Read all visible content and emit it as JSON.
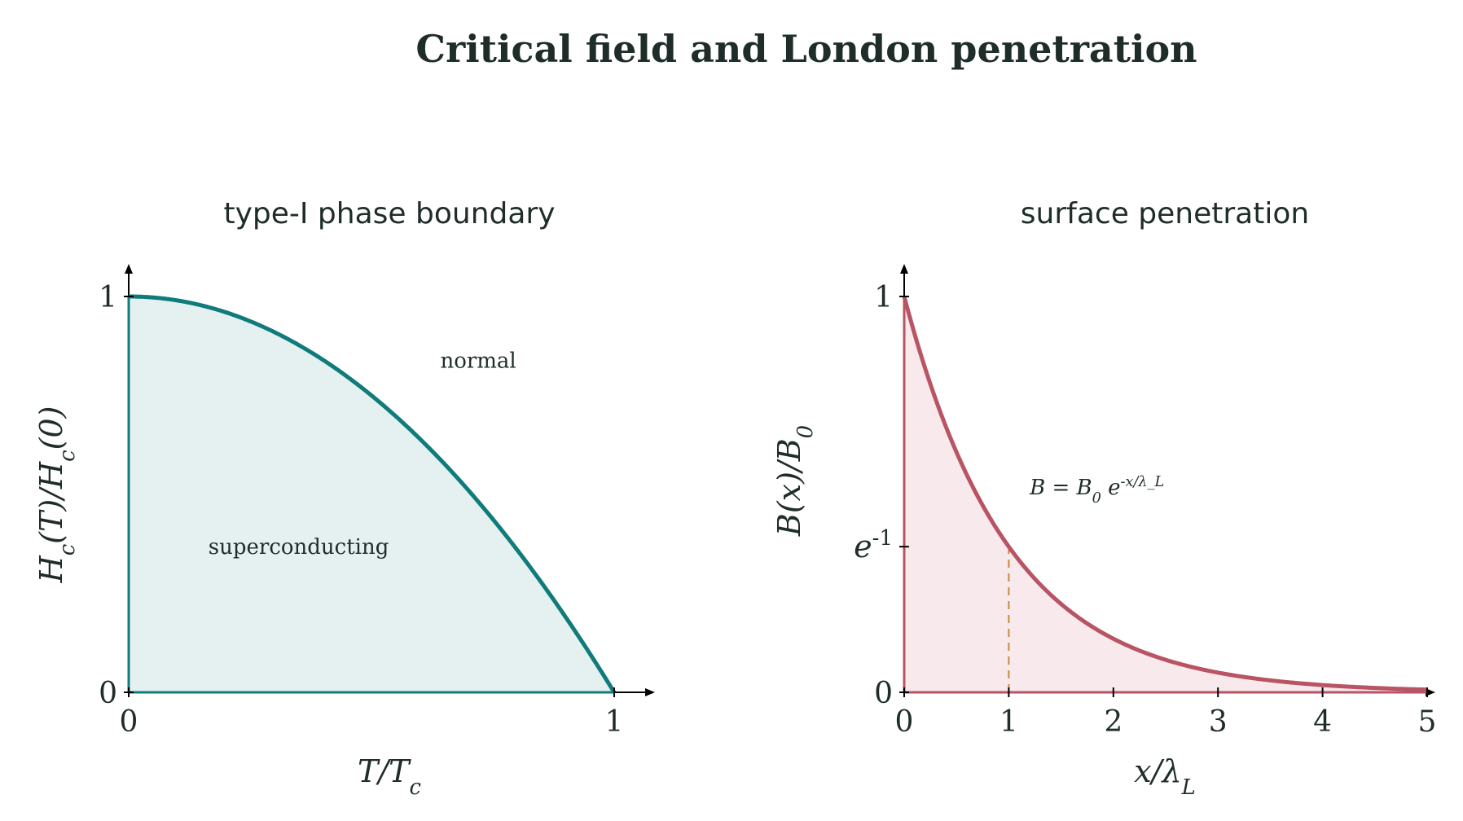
{
  "figure": {
    "title": "Critical field and London penetration"
  },
  "colors": {
    "text": "#1f2d2a",
    "teal": "#0f7b7b",
    "teal_fill": "#e4f1f0",
    "rose": "#b85463",
    "rose_fill": "#f7e9ec",
    "marker": "#c98a3a",
    "axis": "#000000"
  },
  "chart_data": [
    {
      "type": "area",
      "title": "type-I phase boundary",
      "xlabel": "T/T_c",
      "ylabel": "H_c(T)/H_c(0)",
      "xlim": [
        0,
        1
      ],
      "ylim": [
        0,
        1
      ],
      "xticks": [
        0,
        1
      ],
      "yticks": [
        0,
        1
      ],
      "series": [
        {
          "function": "1 - (T/Tc)^2",
          "x": [
            0,
            0.1,
            0.2,
            0.3,
            0.4,
            0.5,
            0.6,
            0.7,
            0.8,
            0.9,
            1.0
          ],
          "values": [
            1.0,
            0.99,
            0.96,
            0.91,
            0.84,
            0.75,
            0.64,
            0.51,
            0.36,
            0.19,
            0.0
          ]
        }
      ],
      "annotations": [
        {
          "text": "normal",
          "x": 0.72,
          "y": 0.82
        },
        {
          "text": "superconducting",
          "x": 0.35,
          "y": 0.35
        }
      ],
      "grid": false
    },
    {
      "type": "area",
      "title": "surface penetration",
      "xlabel": "x/λ_L",
      "ylabel": "B(x)/B_0",
      "xlim": [
        0,
        5
      ],
      "ylim": [
        0,
        1
      ],
      "xticks": [
        0,
        1,
        2,
        3,
        4,
        5
      ],
      "yticks": [
        {
          "value": 0,
          "label": "0"
        },
        {
          "value": 0.3679,
          "label": "e^-1"
        },
        {
          "value": 1,
          "label": "1"
        }
      ],
      "series": [
        {
          "function": "exp(-x/λ_L)",
          "x": [
            0,
            0.5,
            1,
            1.5,
            2,
            2.5,
            3,
            3.5,
            4,
            4.5,
            5
          ],
          "values": [
            1.0,
            0.607,
            0.368,
            0.223,
            0.135,
            0.082,
            0.05,
            0.03,
            0.018,
            0.011,
            0.007
          ]
        }
      ],
      "annotations": [
        {
          "text": "B = B_0 e^{-x/λ_L}",
          "x": 1.2,
          "y": 0.5
        }
      ],
      "markers": [
        {
          "type": "dashed-vertical",
          "x": 1,
          "y_from": 0,
          "y_to": 0.3679
        }
      ],
      "grid": false
    }
  ]
}
